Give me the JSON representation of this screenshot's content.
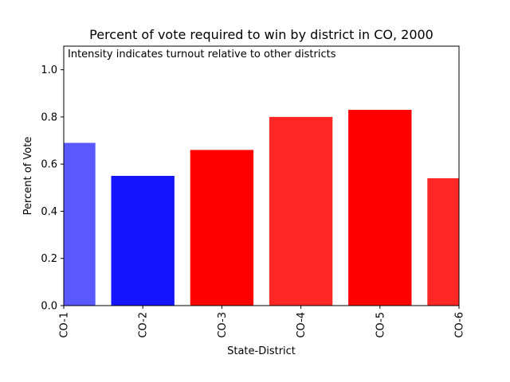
{
  "chart_data": {
    "type": "bar",
    "title": "Percent of vote required to win by district in CO, 2000",
    "annotation": "Intensity indicates turnout relative to other districts",
    "xlabel": "State-District",
    "ylabel": "Percent of Vote",
    "categories": [
      "CO-1",
      "CO-2",
      "CO-3",
      "CO-4",
      "CO-5",
      "CO-6"
    ],
    "values": [
      0.69,
      0.55,
      0.66,
      0.8,
      0.83,
      0.54
    ],
    "bar_colors": [
      "rgba(0,0,255,0.65)",
      "rgba(0,0,255,0.92)",
      "rgba(255,0,0,1.0)",
      "rgba(255,0,0,0.85)",
      "rgba(255,0,0,1.0)",
      "rgba(255,0,0,0.85)"
    ],
    "ylim": [
      0,
      1.1
    ],
    "yticks": [
      0.0,
      0.2,
      0.4,
      0.6,
      0.8,
      1.0
    ],
    "ytick_labels": [
      "0.0",
      "0.2",
      "0.4",
      "0.6",
      "0.8",
      "1.0"
    ],
    "xlim": [
      0,
      5
    ],
    "bar_width": 0.8,
    "grid": false,
    "legend": "none"
  }
}
